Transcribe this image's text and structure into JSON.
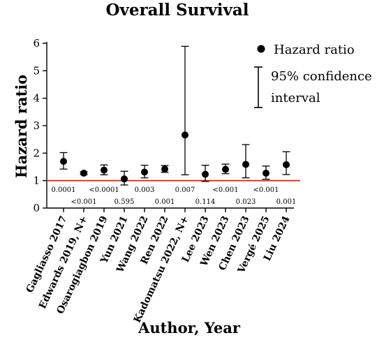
{
  "chart_data": {
    "type": "scatter",
    "title": "Overall Survival",
    "xlabel": "Author, Year",
    "ylabel": "Hazard ratio",
    "ylim": [
      0,
      6
    ],
    "yticks": [
      "0",
      "1",
      "2",
      "3",
      "4",
      "5",
      "6"
    ],
    "reference_line": 1,
    "reference_color": "#c0392b",
    "categories": [
      "Gagliasso 2017",
      "Edwards 2019, N+",
      "Osarogiagbon 2019",
      "Yun 2021",
      "Wang 2022",
      "Ren 2022",
      "Kadomatsu 2022, N+",
      "Lee 2023",
      "Wen 2023",
      "Chen 2023",
      "Vergé 2025",
      "Liu 2024"
    ],
    "series": [
      {
        "name": "Hazard ratio",
        "values": [
          1.7,
          1.27,
          1.38,
          1.06,
          1.31,
          1.42,
          2.66,
          1.23,
          1.41,
          1.59,
          1.27,
          1.58
        ],
        "lower": [
          1.42,
          1.22,
          1.21,
          0.84,
          1.1,
          1.3,
          1.21,
          0.97,
          1.25,
          1.1,
          1.05,
          1.22
        ],
        "upper": [
          2.02,
          1.32,
          1.57,
          1.34,
          1.56,
          1.55,
          5.89,
          1.56,
          1.6,
          2.31,
          1.53,
          2.05
        ]
      }
    ],
    "p_values": [
      "0.0001",
      "<0.001",
      "<0.0001",
      "0.595",
      "0.003",
      "0.001",
      "0.007",
      "0.114",
      "<0.001",
      "0.023",
      "<0.001",
      "0.001"
    ],
    "legend": {
      "point_label": "Hazard ratio",
      "ci_label_line1": "95% confidence",
      "ci_label_line2": "interval",
      "position": "top-right"
    }
  }
}
